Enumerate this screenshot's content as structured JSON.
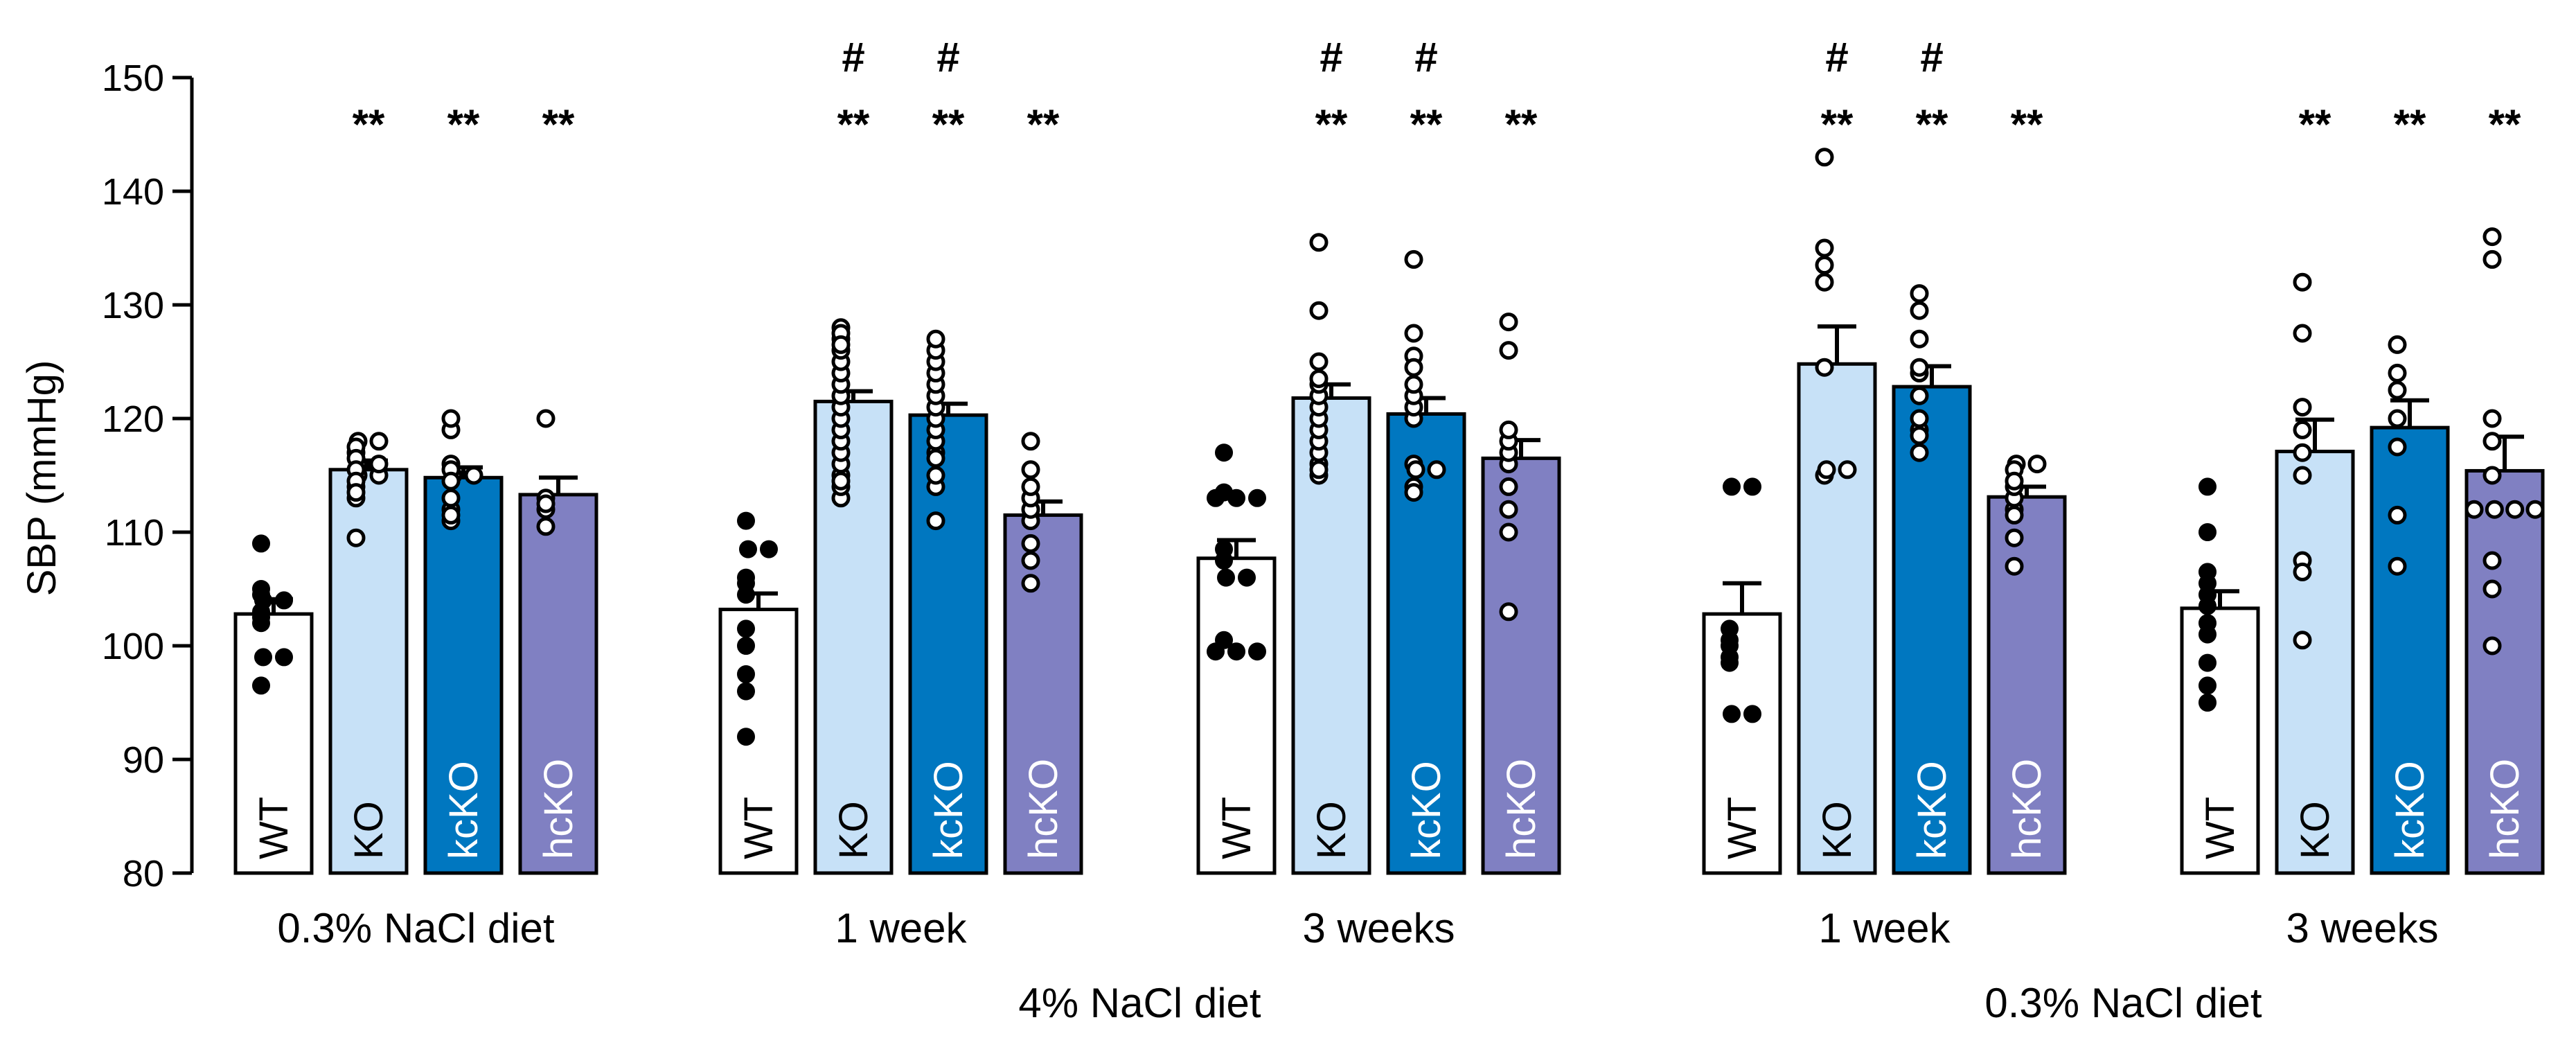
{
  "chart_data": {
    "type": "bar",
    "ylabel": "SBP (mmHg)",
    "ylim": [
      80,
      150
    ],
    "yticks": [
      80,
      90,
      100,
      110,
      120,
      130,
      140,
      150
    ],
    "series_names": [
      "WT",
      "KO",
      "kcKO",
      "hcKO"
    ],
    "colors": {
      "WT": "#ffffff",
      "KO": "#c7e1f7",
      "kcKO": "#0077c0",
      "hcKO": "#8080c2",
      "bar_text_WT": "#000000",
      "bar_text_KO": "#000000",
      "bar_text_kcKO": "#ffffff",
      "bar_text_hcKO": "#ffffff"
    },
    "groups": [
      {
        "label": "0.3% NaCl diet",
        "bars": [
          {
            "name": "WT",
            "mean": 102.8,
            "sem": 1.3,
            "sig": "",
            "hash": "",
            "points": [
              109,
              105,
              104.5,
              104,
              104,
              103,
              102.5,
              102,
              99,
              99,
              96.5
            ]
          },
          {
            "name": "KO",
            "mean": 115.5,
            "sem": 0.8,
            "sig": "**",
            "hash": "",
            "points": [
              118,
              118,
              117.5,
              117,
              116.5,
              116,
              116,
              115.5,
              115,
              115,
              114.5,
              114,
              113.5,
              113,
              109.5
            ]
          },
          {
            "name": "kcKO",
            "mean": 114.8,
            "sem": 0.9,
            "sig": "**",
            "hash": "",
            "points": [
              120,
              119,
              116,
              115.5,
              115,
              115,
              114.5,
              113,
              112,
              111.5,
              111
            ]
          },
          {
            "name": "hcKO",
            "mean": 113.3,
            "sem": 1.5,
            "sig": "**",
            "hash": "",
            "points": [
              120,
              113,
              112.5,
              112,
              110.5
            ]
          }
        ]
      },
      {
        "label": "1 week",
        "bars": [
          {
            "name": "WT",
            "mean": 103.2,
            "sem": 1.4,
            "sig": "",
            "hash": "",
            "points": [
              111,
              108.5,
              108.5,
              106,
              105.5,
              104.5,
              101.5,
              100,
              97.5,
              96,
              92
            ]
          },
          {
            "name": "KO",
            "mean": 121.5,
            "sem": 0.9,
            "sig": "**",
            "hash": "#",
            "points": [
              128,
              127.5,
              127,
              126.5,
              126,
              125,
              124,
              123,
              122,
              121,
              120,
              119,
              118,
              117,
              116,
              115,
              114.5,
              114,
              113
            ]
          },
          {
            "name": "kcKO",
            "mean": 120.3,
            "sem": 1.0,
            "sig": "**",
            "hash": "#",
            "points": [
              127,
              126,
              125,
              124,
              123,
              122,
              121,
              120,
              119,
              118,
              117,
              116.5,
              115,
              114,
              111
            ]
          },
          {
            "name": "hcKO",
            "mean": 111.5,
            "sem": 1.2,
            "sig": "**",
            "hash": "",
            "points": [
              118,
              115.5,
              114,
              113,
              112,
              111,
              109,
              107.5,
              105.5
            ]
          }
        ]
      },
      {
        "label": "3 weeks",
        "bars": [
          {
            "name": "WT",
            "mean": 107.7,
            "sem": 1.6,
            "sig": "",
            "hash": "",
            "points": [
              117,
              113.5,
              113,
              113,
              113,
              108.5,
              107.5,
              106,
              106,
              100.5,
              99.5,
              99.5,
              99.5
            ]
          },
          {
            "name": "KO",
            "mean": 121.8,
            "sem": 1.2,
            "sig": "**",
            "hash": "#",
            "points": [
              135.5,
              129.5,
              125,
              123.5,
              123,
              122,
              121,
              120,
              119,
              118,
              117,
              116,
              115.5,
              115
            ]
          },
          {
            "name": "kcKO",
            "mean": 120.4,
            "sem": 1.4,
            "sig": "**",
            "hash": "#",
            "points": [
              134,
              127.5,
              125.5,
              124.5,
              123,
              122,
              121,
              120,
              116,
              115.5,
              115.5,
              114,
              113.5
            ]
          },
          {
            "name": "hcKO",
            "mean": 116.5,
            "sem": 1.6,
            "sig": "**",
            "hash": "",
            "points": [
              128.5,
              126,
              119,
              118,
              117,
              116,
              114,
              112,
              110,
              103
            ]
          }
        ]
      },
      {
        "label": "1 week",
        "bars": [
          {
            "name": "WT",
            "mean": 102.8,
            "sem": 2.7,
            "sig": "",
            "hash": "",
            "points": [
              114,
              114,
              101.5,
              100.5,
              100,
              99,
              98.5,
              94,
              94
            ]
          },
          {
            "name": "KO",
            "mean": 124.8,
            "sem": 3.3,
            "sig": "**",
            "hash": "#",
            "points": [
              143,
              135,
              133.5,
              132,
              124.5,
              115.5,
              115.5,
              115
            ]
          },
          {
            "name": "kcKO",
            "mean": 122.8,
            "sem": 1.8,
            "sig": "**",
            "hash": "#",
            "points": [
              131,
              129.5,
              127,
              124.5,
              124,
              122,
              120,
              119,
              118.5,
              117
            ]
          },
          {
            "name": "hcKO",
            "mean": 113.1,
            "sem": 0.9,
            "sig": "**",
            "hash": "",
            "points": [
              116,
              116,
              115.5,
              114.5,
              114,
              113,
              112,
              111.5,
              109.5,
              107
            ]
          }
        ]
      },
      {
        "label": "3 weeks",
        "bars": [
          {
            "name": "WT",
            "mean": 103.3,
            "sem": 1.5,
            "sig": "",
            "hash": "",
            "points": [
              114,
              110,
              106.5,
              105.5,
              104.5,
              103.5,
              102,
              101,
              98.5,
              96.5,
              95
            ]
          },
          {
            "name": "KO",
            "mean": 117.1,
            "sem": 2.8,
            "sig": "**",
            "hash": "",
            "points": [
              132,
              127.5,
              121,
              119,
              117,
              115,
              107.5,
              106.5,
              100.5
            ]
          },
          {
            "name": "kcKO",
            "mean": 119.2,
            "sem": 2.4,
            "sig": "**",
            "hash": "",
            "points": [
              126.5,
              124,
              122.5,
              120,
              117.5,
              111.5,
              107
            ]
          },
          {
            "name": "hcKO",
            "mean": 115.4,
            "sem": 3.0,
            "sig": "**",
            "hash": "",
            "points": [
              136,
              134,
              120,
              118,
              115,
              112,
              112,
              112,
              112,
              107.5,
              105,
              100
            ]
          }
        ]
      }
    ],
    "super_groups": [
      {
        "label": "4% NaCl diet",
        "groups": [
          1,
          2
        ]
      },
      {
        "label": "0.3% NaCl diet",
        "groups": [
          3,
          4
        ]
      }
    ]
  }
}
